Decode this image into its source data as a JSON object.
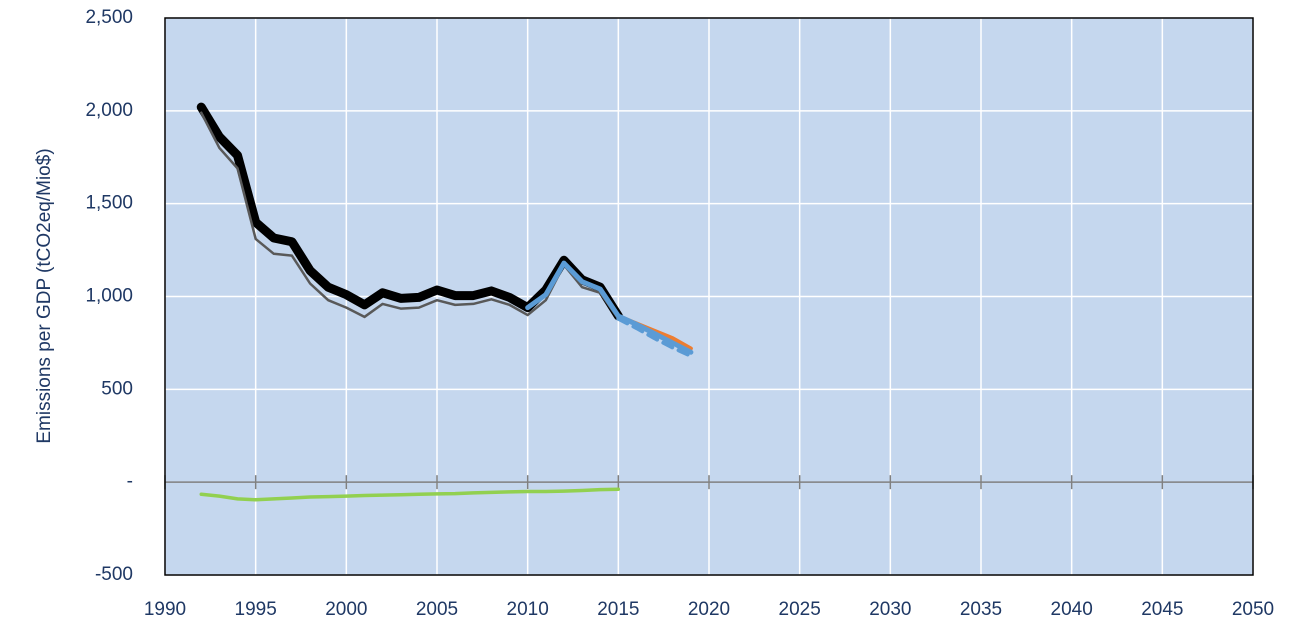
{
  "chart_data": {
    "type": "line",
    "y_label": "Emissions per GDP (tCO2eq/Mio$)",
    "x": [
      1992,
      1993,
      1994,
      1995,
      1996,
      1997,
      1998,
      1999,
      2000,
      2001,
      2002,
      2003,
      2004,
      2005,
      2006,
      2007,
      2008,
      2009,
      2010,
      2011,
      2012,
      2013,
      2014,
      2015,
      2016,
      2017,
      2018,
      2019
    ],
    "series": [
      {
        "color": "#000000",
        "width": 9,
        "dash": false,
        "values": [
          2020,
          1860,
          1760,
          1400,
          1315,
          1295,
          1140,
          1050,
          1010,
          955,
          1020,
          990,
          995,
          1035,
          1005,
          1005,
          1030,
          995,
          940,
          1035,
          1195,
          1090,
          1050,
          895,
          null,
          null,
          null,
          null
        ]
      },
      {
        "color": "#595959",
        "width": 2.5,
        "dash": false,
        "values": [
          1990,
          1800,
          1690,
          1310,
          1230,
          1220,
          1070,
          980,
          940,
          890,
          960,
          935,
          940,
          980,
          955,
          960,
          985,
          955,
          900,
          980,
          1170,
          1050,
          1020,
          880,
          null,
          null,
          null,
          null
        ]
      },
      {
        "color": "#ed7d31",
        "width": 4,
        "dash": false,
        "values": [
          null,
          null,
          null,
          null,
          null,
          null,
          null,
          null,
          null,
          null,
          null,
          null,
          null,
          null,
          null,
          null,
          null,
          null,
          null,
          null,
          null,
          null,
          null,
          895,
          855,
          815,
          775,
          720
        ]
      },
      {
        "color": "#5b9bd5",
        "width": 4,
        "dash": true,
        "values": [
          null,
          null,
          null,
          null,
          null,
          null,
          null,
          null,
          null,
          null,
          null,
          null,
          null,
          null,
          null,
          null,
          null,
          null,
          null,
          null,
          null,
          null,
          null,
          880,
          830,
          775,
          725,
          680
        ]
      },
      {
        "color": "#5b9bd5",
        "width": 5,
        "dash": false,
        "values": [
          null,
          null,
          null,
          null,
          null,
          null,
          null,
          null,
          null,
          null,
          null,
          null,
          null,
          null,
          null,
          null,
          null,
          null,
          940,
          1010,
          1180,
          1080,
          1040,
          895,
          850,
          800,
          750,
          700
        ]
      },
      {
        "color": "#92d050",
        "width": 3.5,
        "dash": false,
        "values": [
          -65,
          -75,
          -90,
          -95,
          -90,
          -85,
          -80,
          -78,
          -75,
          -72,
          -70,
          -68,
          -65,
          -63,
          -62,
          -58,
          -55,
          -52,
          -50,
          -50,
          -48,
          -45,
          -40,
          -38,
          null,
          null,
          null,
          null
        ]
      }
    ],
    "xlim": [
      1990,
      2050
    ],
    "xticks": [
      1990,
      1995,
      2000,
      2005,
      2010,
      2015,
      2020,
      2025,
      2030,
      2035,
      2040,
      2045,
      2050
    ],
    "ylim": [
      -500,
      2500
    ],
    "yticks": [
      -500,
      {
        "value": 0,
        "label": "-"
      },
      500,
      {
        "value": 1000,
        "label": "1,000"
      },
      {
        "value": 1500,
        "label": "1,500"
      },
      {
        "value": 2000,
        "label": "2,000"
      },
      {
        "value": 2500,
        "label": "2,500"
      }
    ],
    "grid": true,
    "plot_background": "#c5d7ee"
  }
}
